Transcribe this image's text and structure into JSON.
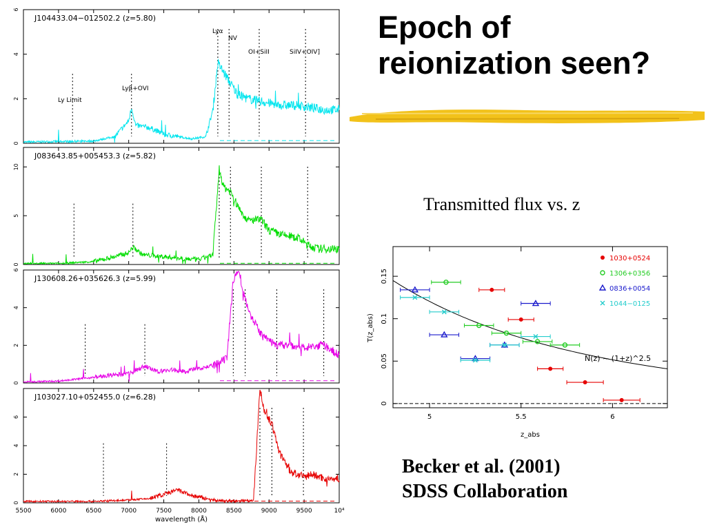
{
  "slide": {
    "title_lines": [
      "Epoch of",
      "reionization seen?"
    ],
    "subtitle": "Transmitted flux vs. z",
    "credit_lines": [
      "Becker et al. (2001)",
      "SDSS Collaboration"
    ],
    "accent_color": "#f2c21a"
  },
  "chart_data": [
    {
      "type": "line",
      "xlabel": "wavelength (Å)",
      "xlim": [
        5500,
        10000
      ],
      "x_ticks": [
        "5500",
        "6000",
        "6500",
        "7000",
        "7500",
        "8000",
        "8500",
        "9000",
        "9500",
        "10⁴"
      ],
      "line_labels": [
        "Ly Limit",
        "Lyβ+OVI",
        "Lyα",
        "NV",
        "OI+SiII",
        "SiIV+OIV]"
      ],
      "panels": [
        {
          "name": "J104433.04−012502.2 (z=5.80)",
          "color": "#00e5ee",
          "ylim": [
            0,
            6
          ],
          "y_ticks": [
            "0",
            "2",
            "4",
            "6"
          ],
          "line_x": [
            6200,
            7040,
            8270,
            8430,
            8860,
            9520
          ],
          "spectrum": [
            [
              5500,
              0.05
            ],
            [
              6000,
              0.08
            ],
            [
              6500,
              0.1
            ],
            [
              6800,
              0.3
            ],
            [
              7000,
              1.0
            ],
            [
              7040,
              1.6
            ],
            [
              7100,
              0.8
            ],
            [
              7300,
              0.7
            ],
            [
              7500,
              0.4
            ],
            [
              7700,
              0.3
            ],
            [
              7900,
              0.2
            ],
            [
              8100,
              0.3
            ],
            [
              8200,
              1.5
            ],
            [
              8270,
              3.6
            ],
            [
              8350,
              3.2
            ],
            [
              8430,
              2.8
            ],
            [
              8550,
              2.2
            ],
            [
              8700,
              2.0
            ],
            [
              8860,
              1.9
            ],
            [
              9000,
              1.8
            ],
            [
              9200,
              1.7
            ],
            [
              9400,
              1.7
            ],
            [
              9600,
              1.6
            ],
            [
              9800,
              1.5
            ],
            [
              10000,
              1.5
            ]
          ]
        },
        {
          "name": "J083643.85+005453.3 (z=5.82)",
          "color": "#00dd00",
          "ylim": [
            0,
            12
          ],
          "y_ticks": [
            "0",
            "5",
            "10"
          ],
          "line_x": [
            6220,
            7060,
            8290,
            8450,
            8890,
            9550
          ],
          "spectrum": [
            [
              5500,
              0.1
            ],
            [
              6000,
              0.1
            ],
            [
              6500,
              0.3
            ],
            [
              6800,
              0.8
            ],
            [
              7000,
              1.2
            ],
            [
              7060,
              1.8
            ],
            [
              7200,
              1.0
            ],
            [
              7500,
              0.8
            ],
            [
              7800,
              0.6
            ],
            [
              8000,
              0.5
            ],
            [
              8200,
              1.0
            ],
            [
              8290,
              9.8
            ],
            [
              8350,
              8.0
            ],
            [
              8450,
              7.5
            ],
            [
              8550,
              6.0
            ],
            [
              8700,
              4.5
            ],
            [
              8890,
              4.6
            ],
            [
              9000,
              3.5
            ],
            [
              9200,
              3.0
            ],
            [
              9400,
              2.8
            ],
            [
              9550,
              2.0
            ],
            [
              9700,
              1.6
            ],
            [
              10000,
              1.6
            ]
          ]
        },
        {
          "name": "J130608.26+035626.3 (z=5.99)",
          "color": "#e600e6",
          "ylim": [
            0,
            6
          ],
          "y_ticks": [
            "0",
            "2",
            "4",
            "6"
          ],
          "line_x": [
            6380,
            7230,
            8490,
            8660,
            9110,
            9780
          ],
          "spectrum": [
            [
              5500,
              0.05
            ],
            [
              6000,
              0.1
            ],
            [
              6500,
              0.3
            ],
            [
              7000,
              0.5
            ],
            [
              7230,
              0.9
            ],
            [
              7400,
              0.6
            ],
            [
              7600,
              0.7
            ],
            [
              7800,
              0.6
            ],
            [
              8000,
              0.8
            ],
            [
              8200,
              0.9
            ],
            [
              8400,
              1.3
            ],
            [
              8490,
              5.5
            ],
            [
              8560,
              6.0
            ],
            [
              8660,
              4.5
            ],
            [
              8750,
              3.5
            ],
            [
              8900,
              2.5
            ],
            [
              9110,
              2.0
            ],
            [
              9300,
              2.0
            ],
            [
              9500,
              1.9
            ],
            [
              9780,
              2.0
            ],
            [
              10000,
              1.5
            ]
          ]
        },
        {
          "name": "J103027.10+052455.0 (z=6.28)",
          "color": "#e60000",
          "ylim": [
            0,
            8
          ],
          "y_ticks": [
            "0",
            "2",
            "4",
            "6"
          ],
          "line_x": [
            6640,
            7540,
            8870,
            9040,
            9490
          ],
          "spectrum": [
            [
              5500,
              0.1
            ],
            [
              6000,
              0.1
            ],
            [
              6500,
              0.1
            ],
            [
              7000,
              0.2
            ],
            [
              7300,
              0.3
            ],
            [
              7500,
              0.6
            ],
            [
              7700,
              0.9
            ],
            [
              7900,
              0.5
            ],
            [
              8200,
              0.2
            ],
            [
              8500,
              0.1
            ],
            [
              8780,
              0.2
            ],
            [
              8870,
              8.0
            ],
            [
              8930,
              6.5
            ],
            [
              9040,
              5.5
            ],
            [
              9150,
              3.5
            ],
            [
              9300,
              2.2
            ],
            [
              9490,
              1.8
            ],
            [
              9600,
              2.0
            ],
            [
              9800,
              1.7
            ],
            [
              10000,
              1.6
            ]
          ]
        }
      ]
    },
    {
      "type": "scatter",
      "xlabel": "z_abs",
      "ylabel": "T(z_abs)",
      "xlim": [
        4.8,
        6.3
      ],
      "ylim": [
        -0.005,
        0.185
      ],
      "x_ticks": [
        "5",
        "5.5",
        "6"
      ],
      "y_ticks": [
        "0",
        "0.05",
        "0.1",
        "0.15"
      ],
      "curve_label": "N(z) ~ (1+z)^2.5",
      "curve": {
        "type": "power",
        "A": 0.145,
        "z0": 4.8,
        "slope": -2.5
      },
      "series": [
        {
          "name": "1030+0524",
          "color": "#e60000",
          "marker": "circle",
          "points": [
            [
              5.34,
              0.134,
              0.07
            ],
            [
              5.5,
              0.099,
              0.07
            ],
            [
              5.66,
              0.041,
              0.07
            ],
            [
              5.85,
              0.025,
              0.1
            ],
            [
              6.05,
              0.004,
              0.1
            ]
          ]
        },
        {
          "name": "1306+0356",
          "color": "#22cc22",
          "marker": "circle-open",
          "points": [
            [
              5.09,
              0.143,
              0.08
            ],
            [
              5.27,
              0.092,
              0.08
            ],
            [
              5.42,
              0.083,
              0.08
            ],
            [
              5.59,
              0.073,
              0.08
            ],
            [
              5.74,
              0.069,
              0.08
            ]
          ]
        },
        {
          "name": "0836+0054",
          "color": "#1a1acc",
          "marker": "triangle",
          "points": [
            [
              4.92,
              0.134,
              0.08
            ],
            [
              5.08,
              0.081,
              0.08
            ],
            [
              5.25,
              0.053,
              0.08
            ],
            [
              5.41,
              0.069,
              0.08
            ],
            [
              5.58,
              0.118,
              0.08
            ]
          ]
        },
        {
          "name": "1044−0125",
          "color": "#22cccc",
          "marker": "cross",
          "points": [
            [
              4.92,
              0.125,
              0.08
            ],
            [
              5.08,
              0.108,
              0.08
            ],
            [
              5.25,
              0.051,
              0.08
            ],
            [
              5.41,
              0.069,
              0.08
            ],
            [
              5.58,
              0.079,
              0.08
            ]
          ]
        }
      ]
    }
  ]
}
